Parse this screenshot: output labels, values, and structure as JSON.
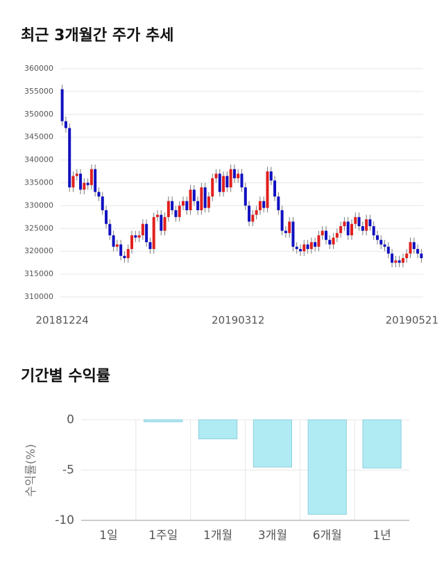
{
  "chart_data": [
    {
      "type": "candlestick",
      "title": "최근 3개월간 주가 추세",
      "categories": [
        "20181224",
        null,
        null,
        null,
        null,
        null,
        null,
        null,
        null,
        null,
        null,
        null,
        null,
        null,
        null,
        null,
        null,
        null,
        null,
        null,
        null,
        null,
        null,
        null,
        null,
        null,
        null,
        null,
        null,
        null,
        null,
        null,
        null,
        null,
        null,
        null,
        null,
        null,
        null,
        null,
        null,
        null,
        null,
        null,
        null,
        null,
        null,
        null,
        "20190312",
        null,
        null,
        null,
        null,
        null,
        null,
        null,
        null,
        null,
        null,
        null,
        null,
        null,
        null,
        null,
        null,
        null,
        null,
        null,
        null,
        null,
        null,
        null,
        null,
        null,
        null,
        null,
        null,
        null,
        null,
        null,
        null,
        null,
        null,
        null,
        null,
        null,
        null,
        null,
        null,
        null,
        null,
        null,
        null,
        null,
        null,
        null,
        null,
        null,
        "20190521"
      ],
      "open": [
        355500,
        348500,
        347000,
        334000,
        336500,
        337000,
        333500,
        335000,
        334500,
        338000,
        333000,
        332000,
        329000,
        326000,
        323500,
        321000,
        321500,
        319000,
        318500,
        320500,
        323500,
        323000,
        323500,
        326000,
        322000,
        320500,
        327500,
        328000,
        324500,
        327500,
        331000,
        329000,
        327500,
        330000,
        331000,
        329000,
        333500,
        331000,
        329000,
        334000,
        329500,
        332000,
        336000,
        337000,
        333000,
        336500,
        334000,
        338000,
        336000,
        337000,
        334000,
        330000,
        326500,
        328000,
        329000,
        331000,
        329500,
        337500,
        335500,
        332000,
        329000,
        324500,
        324000,
        326500,
        321000,
        320500,
        320000,
        321500,
        320500,
        322000,
        321000,
        323500,
        324500,
        322500,
        321500,
        323000,
        324000,
        325500,
        326500,
        323500,
        326000,
        327500,
        325500,
        324500,
        327000,
        325500,
        323500,
        322500,
        321500,
        321000,
        319500,
        317500,
        318000,
        317500,
        318500,
        319500,
        322000,
        320500,
        319500
      ],
      "high": [
        356500,
        349500,
        348000,
        337500,
        338000,
        338000,
        336000,
        336000,
        339000,
        339000,
        334000,
        333000,
        330000,
        327000,
        324500,
        322500,
        322500,
        320000,
        321500,
        324500,
        324500,
        324500,
        327000,
        327000,
        323000,
        328500,
        329000,
        329000,
        328500,
        332000,
        332000,
        330000,
        331000,
        332000,
        332000,
        334500,
        334500,
        332000,
        335000,
        335000,
        333000,
        337000,
        338000,
        338000,
        337500,
        337500,
        339000,
        339000,
        338000,
        338000,
        335000,
        331000,
        329000,
        330000,
        332000,
        332000,
        338500,
        338500,
        336500,
        333000,
        330000,
        325500,
        327500,
        327500,
        322000,
        321500,
        322500,
        322500,
        323000,
        323000,
        324500,
        325500,
        325500,
        323500,
        324000,
        325000,
        326500,
        327500,
        327500,
        327000,
        328500,
        328500,
        326500,
        328000,
        328000,
        326500,
        324500,
        323500,
        322500,
        322000,
        320500,
        319000,
        319000,
        319500,
        320500,
        323000,
        323000,
        321500,
        320500
      ],
      "low": [
        347500,
        346000,
        333000,
        333000,
        335500,
        332500,
        332500,
        333500,
        333500,
        332000,
        331000,
        328000,
        325000,
        322500,
        320000,
        320000,
        318000,
        317500,
        317500,
        319500,
        322000,
        322000,
        322500,
        321000,
        319500,
        319500,
        326500,
        323500,
        323500,
        326500,
        328000,
        326500,
        326500,
        329000,
        328000,
        328000,
        330000,
        328000,
        328000,
        328500,
        328500,
        331000,
        335000,
        332000,
        332000,
        333000,
        333000,
        335000,
        335000,
        333000,
        329000,
        325500,
        325500,
        327000,
        328000,
        328500,
        328500,
        334500,
        331000,
        328000,
        323500,
        323000,
        323000,
        320000,
        319500,
        319000,
        319000,
        319500,
        319500,
        320000,
        320000,
        322500,
        321500,
        320500,
        320500,
        322000,
        323000,
        324500,
        322500,
        322500,
        325000,
        324500,
        323500,
        323500,
        324500,
        322500,
        321500,
        320500,
        320000,
        318500,
        316500,
        316500,
        316500,
        316500,
        317500,
        318500,
        319500,
        318500,
        317500
      ],
      "close": [
        348500,
        347000,
        334000,
        336500,
        337000,
        333500,
        335000,
        334500,
        338000,
        333000,
        332000,
        329000,
        326000,
        323500,
        321000,
        321500,
        319000,
        318500,
        320500,
        323500,
        323000,
        323500,
        326000,
        322000,
        320500,
        327500,
        328000,
        324500,
        327500,
        331000,
        329000,
        327500,
        330000,
        331000,
        329000,
        333500,
        331000,
        329000,
        334000,
        329500,
        332000,
        336000,
        337000,
        333000,
        336500,
        334000,
        338000,
        336000,
        337000,
        334000,
        330000,
        326500,
        328000,
        329000,
        331000,
        329500,
        337500,
        335500,
        332000,
        329000,
        324500,
        324000,
        326500,
        321000,
        320500,
        320000,
        321500,
        320500,
        322000,
        321000,
        323500,
        324500,
        322500,
        321500,
        323000,
        324000,
        325500,
        326500,
        323500,
        326000,
        327500,
        325500,
        324500,
        327000,
        325500,
        323500,
        322500,
        321500,
        321000,
        319500,
        317500,
        318000,
        317500,
        318500,
        319500,
        322000,
        320500,
        319500,
        318500
      ],
      "up_color": "#e0201e",
      "down_color": "#1010c0",
      "ylim": [
        310000,
        360000
      ],
      "yticks": [
        310000,
        315000,
        320000,
        325000,
        330000,
        335000,
        340000,
        345000,
        350000,
        355000,
        360000
      ],
      "grid": true
    },
    {
      "type": "bar",
      "title": "기간별 수익률",
      "y_label": "수익률(%)",
      "categories": [
        "1일",
        "1주일",
        "1개월",
        "3개월",
        "6개월",
        "1년"
      ],
      "values": [
        0,
        -0.2,
        -1.9,
        -4.7,
        -9.4,
        -4.8
      ],
      "color": "#b0ebf4",
      "edge_color": "#8ccfdc",
      "ylim": [
        -10,
        0
      ],
      "yticks": [
        0,
        -5,
        -10
      ],
      "grid": true
    }
  ]
}
